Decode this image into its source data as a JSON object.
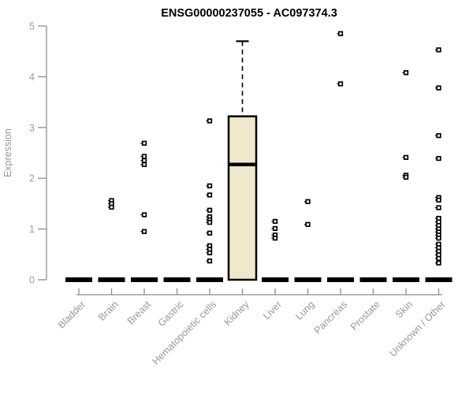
{
  "window": {
    "title": "ENSG00000237055 - AC097374.3"
  },
  "chart_data": {
    "type": "boxplot",
    "title": "ENSG00000237055 - AC097374.3",
    "xlabel": "",
    "ylabel": "Expression",
    "ylim": [
      0,
      5
    ],
    "yticks": [
      0,
      1,
      2,
      3,
      4,
      5
    ],
    "grid": false,
    "legend": false,
    "categories": [
      "Bladder",
      "Brain",
      "Breast",
      "Gastric",
      "Hematopoietic cells",
      "Kidney",
      "Liver",
      "Lung",
      "Pancreas",
      "Prostate",
      "Skin",
      "Unknown / Other"
    ],
    "boxes": [
      {
        "category": "Bladder",
        "q1": 0,
        "median": 0,
        "q3": 0,
        "whisker_low": 0,
        "whisker_high": 0,
        "outliers": []
      },
      {
        "category": "Brain",
        "q1": 0,
        "median": 0,
        "q3": 0,
        "whisker_low": 0,
        "whisker_high": 0,
        "outliers": [
          1.56,
          1.5,
          1.43
        ]
      },
      {
        "category": "Breast",
        "q1": 0,
        "median": 0,
        "q3": 0,
        "whisker_low": 0,
        "whisker_high": 0,
        "outliers": [
          2.69,
          2.43,
          2.35,
          2.27,
          1.28,
          0.95
        ]
      },
      {
        "category": "Gastric",
        "q1": 0,
        "median": 0,
        "q3": 0,
        "whisker_low": 0,
        "whisker_high": 0,
        "outliers": []
      },
      {
        "category": "Hematopoietic cells",
        "q1": 0,
        "median": 0,
        "q3": 0,
        "whisker_low": 0,
        "whisker_high": 0,
        "outliers": [
          3.13,
          1.85,
          1.67,
          1.37,
          1.24,
          1.18,
          1.13,
          0.92,
          0.67,
          0.6,
          0.53,
          0.37
        ]
      },
      {
        "category": "Kidney",
        "q1": 0,
        "median": 2.27,
        "q3": 3.22,
        "whisker_low": 0,
        "whisker_high": 4.7,
        "outliers": []
      },
      {
        "category": "Liver",
        "q1": 0,
        "median": 0,
        "q3": 0,
        "whisker_low": 0,
        "whisker_high": 0,
        "outliers": [
          1.15,
          1.01,
          0.88,
          0.82
        ]
      },
      {
        "category": "Lung",
        "q1": 0,
        "median": 0,
        "q3": 0,
        "whisker_low": 0,
        "whisker_high": 0,
        "outliers": [
          1.54,
          1.09
        ]
      },
      {
        "category": "Pancreas",
        "q1": 0,
        "median": 0,
        "q3": 0,
        "whisker_low": 0,
        "whisker_high": 0,
        "outliers": [
          4.85,
          3.86
        ]
      },
      {
        "category": "Prostate",
        "q1": 0,
        "median": 0,
        "q3": 0,
        "whisker_low": 0,
        "whisker_high": 0,
        "outliers": []
      },
      {
        "category": "Skin",
        "q1": 0,
        "median": 0,
        "q3": 0,
        "whisker_low": 0,
        "whisker_high": 0,
        "outliers": [
          4.08,
          2.41,
          2.06,
          2.02
        ]
      },
      {
        "category": "Unknown / Other",
        "q1": 0,
        "median": 0,
        "q3": 0,
        "whisker_low": 0,
        "whisker_high": 0,
        "outliers": [
          4.53,
          3.78,
          2.84,
          2.39,
          1.62,
          1.57,
          1.42,
          1.21,
          1.14,
          1.07,
          1.0,
          0.94,
          0.88,
          0.82,
          0.7,
          0.63,
          0.56,
          0.49,
          0.42,
          0.33
        ]
      }
    ],
    "colors": {
      "box_fill": "#EFE8CD",
      "box_stroke": "#000000",
      "median": "#000000",
      "whisker": "#000000",
      "flat_bar": "#000000",
      "marker_stroke": "#000000",
      "marker_fill": "#FFFFFF",
      "axis_line": "#8f8f8f",
      "tick_label": "#9b9b9b",
      "title": "#000000"
    }
  }
}
